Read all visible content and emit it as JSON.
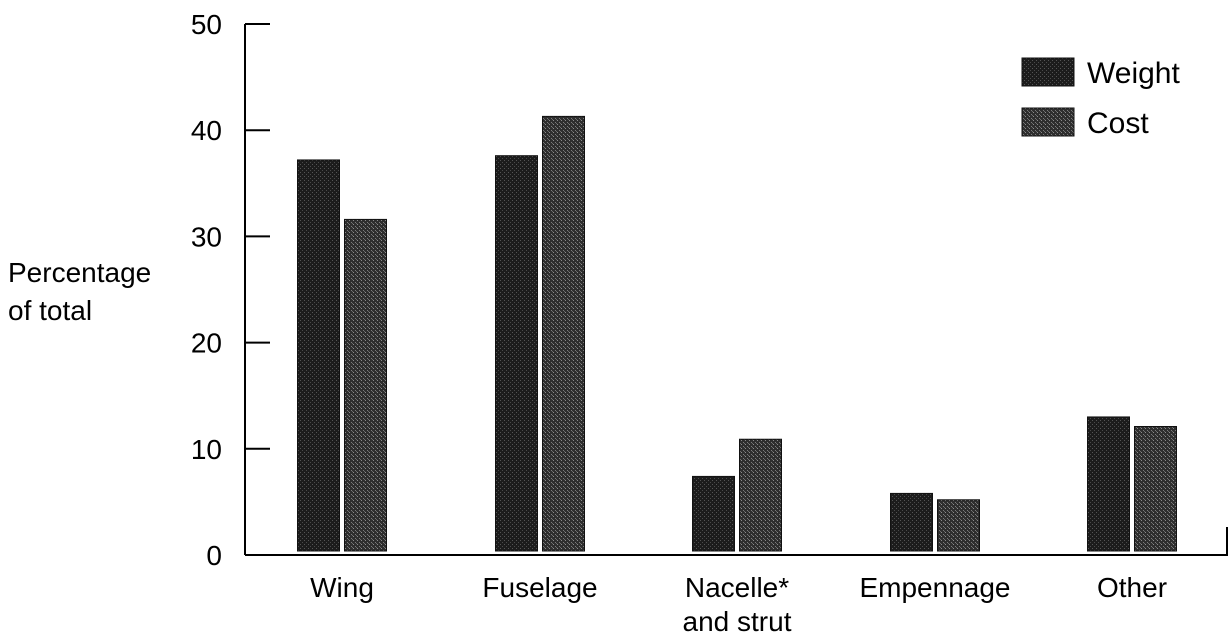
{
  "chart_data": {
    "type": "bar",
    "title": "",
    "xlabel": "",
    "ylabel": [
      "Percentage",
      "of total"
    ],
    "categories": [
      [
        "Wing"
      ],
      [
        "Fuselage"
      ],
      [
        "Nacelle*",
        "and strut"
      ],
      [
        "Empennage"
      ],
      [
        "Other"
      ]
    ],
    "series": [
      {
        "name": "Weight",
        "values": [
          37.2,
          37.6,
          7.4,
          5.8,
          13.0
        ],
        "color": "#1f1f1f"
      },
      {
        "name": "Cost",
        "values": [
          31.6,
          41.3,
          10.9,
          5.2,
          12.1
        ],
        "color": "#3a3a3a"
      }
    ],
    "ylim": [
      0,
      50
    ],
    "yticks": [
      "0",
      "10",
      "20",
      "30",
      "40",
      "50"
    ],
    "grid": false,
    "legend_position": "top-right"
  }
}
